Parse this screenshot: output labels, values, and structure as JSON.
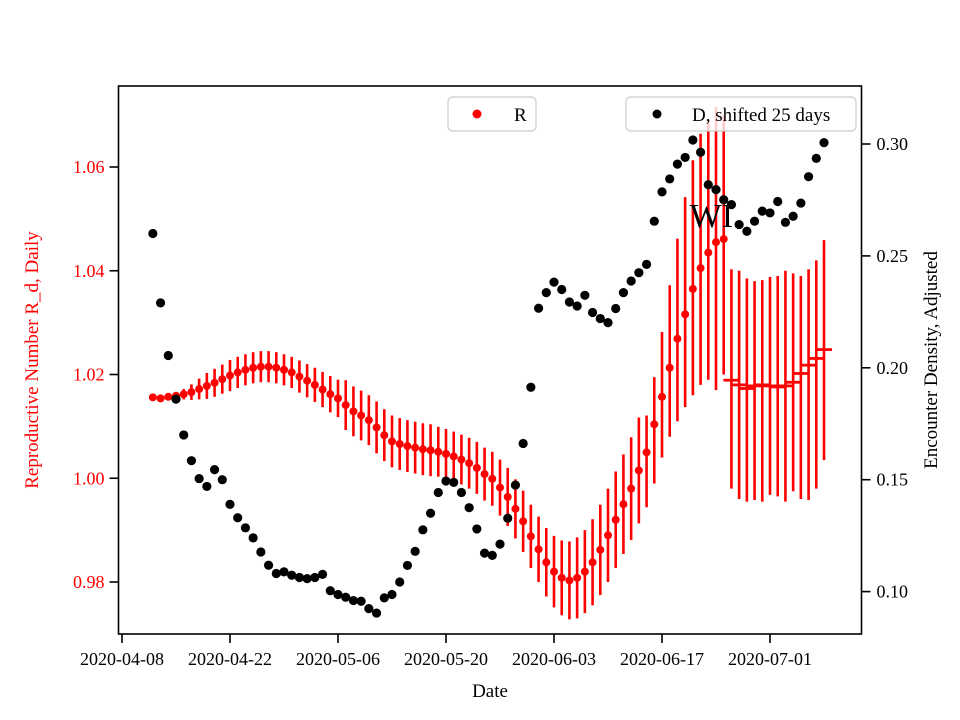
{
  "figure": {
    "background": "#ffffff"
  },
  "colors": {
    "r_series": "#ff0000",
    "d_series": "#000000",
    "spine": "#000000",
    "legend_border": "#cccccc"
  },
  "chart_data": {
    "type": "scatter",
    "title": "",
    "xlabel": "Date",
    "start_date": "2020-04-08",
    "x_ticks": {
      "labels": [
        "2020-04-08",
        "2020-04-22",
        "2020-05-06",
        "2020-05-20",
        "2020-06-03",
        "2020-06-17",
        "2020-07-01"
      ],
      "day_offsets": [
        0,
        14,
        28,
        42,
        56,
        70,
        84
      ]
    },
    "left_axis": {
      "label": "Reproductive Number R_d, Daily",
      "color": "#ff0000",
      "tick_labels": [
        "1.06",
        "1.04",
        "1.02",
        "1.00",
        "0.98"
      ],
      "tick_values": [
        1.06,
        1.04,
        1.02,
        1.0,
        0.98
      ],
      "range": [
        0.97,
        1.0756
      ]
    },
    "right_axis": {
      "label": "Encounter Density, Adjusted",
      "color": "#000000",
      "tick_labels": [
        "0.30",
        "0.25",
        "0.20",
        "0.15",
        "0.10"
      ],
      "tick_values": [
        0.3,
        0.25,
        0.2,
        0.15,
        0.1
      ],
      "range": [
        0.081,
        0.326
      ]
    },
    "legends": [
      {
        "label": "R",
        "marker_color": "#ff0000"
      },
      {
        "label": "D, shifted 25 days",
        "marker_color": "#000000"
      }
    ],
    "annotations": [
      {
        "text": "WI",
        "day_offset": 76.4,
        "value_left_axis": 1.0507
      }
    ],
    "series": [
      {
        "name": "R",
        "axis": "left",
        "color": "#ff0000",
        "marker": "circle-then-dash",
        "dash_marker_start_index": 75,
        "start_day_offset": 4,
        "values": [
          1.0156,
          1.0154,
          1.0157,
          1.0159,
          1.0162,
          1.0166,
          1.0172,
          1.0178,
          1.0184,
          1.0191,
          1.0198,
          1.0204,
          1.0209,
          1.0213,
          1.0215,
          1.0215,
          1.0213,
          1.0209,
          1.0204,
          1.0196,
          1.0188,
          1.018,
          1.0171,
          1.0162,
          1.0154,
          1.0141,
          1.0129,
          1.0121,
          1.0112,
          1.0098,
          1.0083,
          1.0071,
          1.0066,
          1.0062,
          1.0059,
          1.0056,
          1.0054,
          1.0051,
          1.0047,
          1.0042,
          1.0036,
          1.0029,
          1.002,
          1.0008,
          0.9999,
          0.9982,
          0.9964,
          0.9941,
          0.9917,
          0.9888,
          0.9863,
          0.9838,
          0.982,
          0.9808,
          0.9803,
          0.9808,
          0.982,
          0.9838,
          0.9862,
          0.989,
          0.992,
          0.995,
          0.998,
          1.0015,
          1.005,
          1.0104,
          1.0157,
          1.0213,
          1.0269,
          1.0316,
          1.0365,
          1.0405,
          1.0435,
          1.0455,
          1.0461,
          1.0189,
          1.018,
          1.0173,
          1.0178,
          1.018,
          1.0178,
          1.0176,
          1.0178,
          1.0185,
          1.0202,
          1.0218,
          1.0231,
          1.0248
        ],
        "err_lo": [
          1.0151,
          1.0149,
          1.0152,
          1.0154,
          1.0152,
          1.0151,
          1.0152,
          1.0153,
          1.0157,
          1.0163,
          1.0168,
          1.0174,
          1.0179,
          1.0183,
          1.0185,
          1.0185,
          1.0183,
          1.0179,
          1.0174,
          1.0165,
          1.0156,
          1.0147,
          1.0137,
          1.0127,
          1.0118,
          1.0093,
          1.0081,
          1.0073,
          1.0064,
          1.0048,
          1.0033,
          1.0021,
          1.0016,
          1.0012,
          1.0009,
          1.0006,
          1.0004,
          1.0003,
          0.9999,
          0.9994,
          0.9988,
          0.998,
          0.997,
          0.9957,
          0.9947,
          0.9928,
          0.9908,
          0.9884,
          0.9858,
          0.9827,
          0.98,
          0.9772,
          0.9751,
          0.9736,
          0.9728,
          0.973,
          0.974,
          0.9755,
          0.9775,
          0.98,
          0.9827,
          0.9854,
          0.9881,
          0.9913,
          0.9944,
          0.999,
          1.004,
          1.008,
          1.011,
          1.0137,
          1.016,
          1.018,
          1.019,
          1.017,
          1.02,
          0.998,
          0.996,
          0.9955,
          0.9958,
          0.9955,
          0.9968,
          0.9965,
          0.9955,
          0.9975,
          0.996,
          0.9958,
          0.998,
          1.0035
        ],
        "err_hi": [
          1.0161,
          1.0159,
          1.0162,
          1.0164,
          1.0172,
          1.0181,
          1.0192,
          1.0203,
          1.0211,
          1.0219,
          1.0228,
          1.0234,
          1.0239,
          1.0243,
          1.0245,
          1.0245,
          1.0243,
          1.0239,
          1.0234,
          1.0227,
          1.022,
          1.0213,
          1.0205,
          1.0197,
          1.019,
          1.0189,
          1.0177,
          1.0169,
          1.016,
          1.0148,
          1.0133,
          1.0121,
          1.0116,
          1.0112,
          1.0109,
          1.0106,
          1.0104,
          1.0099,
          1.0095,
          1.009,
          1.0084,
          1.0078,
          1.007,
          1.0059,
          1.0051,
          1.0036,
          1.002,
          0.9998,
          0.9976,
          0.9949,
          0.9926,
          0.9904,
          0.9889,
          0.988,
          0.9878,
          0.9886,
          0.99,
          0.9921,
          0.9949,
          0.998,
          1.0013,
          1.0046,
          1.0079,
          1.0117,
          1.0121,
          1.0195,
          1.0282,
          1.0372,
          1.0462,
          1.0542,
          1.0613,
          1.0664,
          1.069,
          1.0716,
          1.07,
          1.0403,
          1.04,
          1.0385,
          1.038,
          1.0382,
          1.0388,
          1.039,
          1.04,
          1.0395,
          1.039,
          1.0403,
          1.042,
          1.0459
        ]
      },
      {
        "name": "D, shifted 25 days",
        "axis": "right",
        "color": "#000000",
        "marker": "circle",
        "start_day_offset": 4,
        "values": [
          0.26,
          0.229,
          0.2055,
          0.186,
          0.17,
          0.1585,
          0.1505,
          0.147,
          0.1545,
          0.15,
          0.139,
          0.133,
          0.1285,
          0.124,
          0.1177,
          0.1118,
          0.1081,
          0.1088,
          0.1073,
          0.1063,
          0.1058,
          0.1063,
          0.1077,
          0.1004,
          0.0987,
          0.0975,
          0.096,
          0.0957,
          0.0924,
          0.0904,
          0.0972,
          0.0987,
          0.1043,
          0.1117,
          0.118,
          0.1276,
          0.135,
          0.1443,
          0.1494,
          0.1488,
          0.1443,
          0.1375,
          0.128,
          0.1172,
          0.1162,
          0.1212,
          0.1328,
          0.1476,
          0.1662,
          0.1913,
          0.2266,
          0.2336,
          0.2383,
          0.235,
          0.2294,
          0.2276,
          0.2324,
          0.2247,
          0.222,
          0.2202,
          0.2265,
          0.2336,
          0.2388,
          0.2425,
          0.2462,
          0.2655,
          0.2786,
          0.2844,
          0.291,
          0.294,
          0.3018,
          0.2963,
          0.2818,
          0.2796,
          0.2751,
          0.2729,
          0.264,
          0.261,
          0.2655,
          0.27,
          0.2692,
          0.2743,
          0.265,
          0.2677,
          0.2736,
          0.2854,
          0.2936,
          0.3006
        ]
      }
    ]
  }
}
